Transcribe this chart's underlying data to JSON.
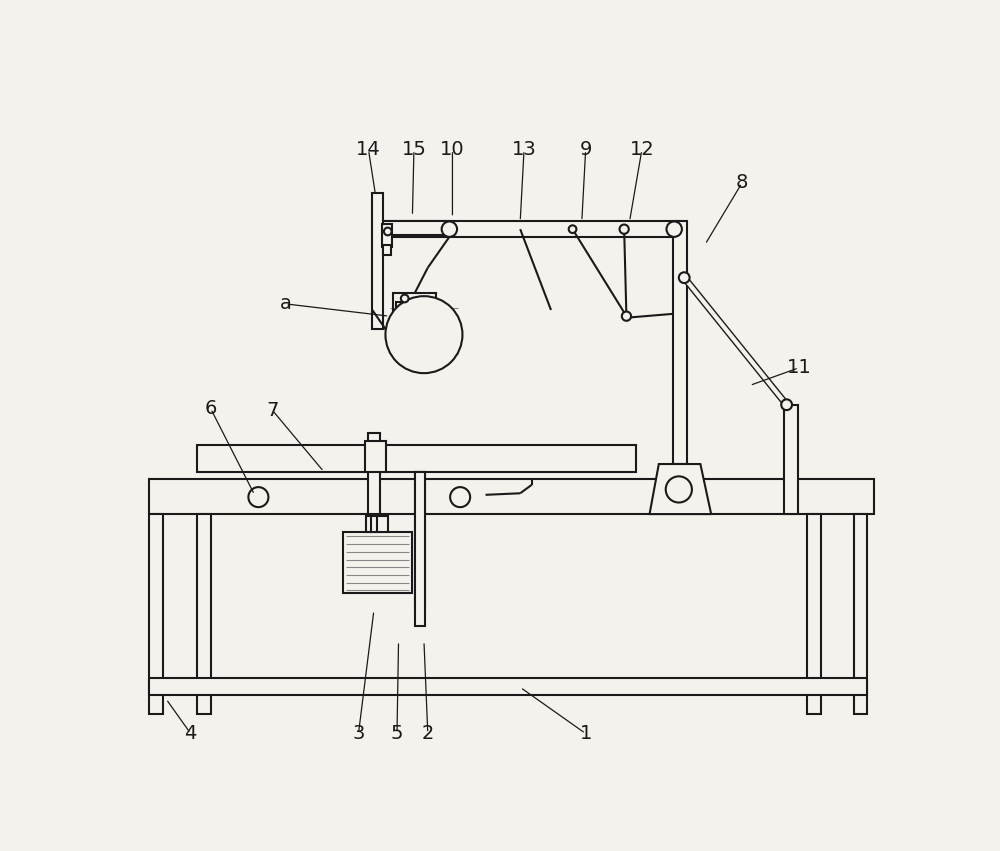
{
  "bg_color": "#f5f2ee",
  "line_color": "#1a1a1a",
  "lw": 1.5,
  "lw_thin": 0.8,
  "hatch_color": "#888888",
  "labels": [
    [
      "1",
      595,
      820,
      510,
      760
    ],
    [
      "2",
      390,
      820,
      385,
      700
    ],
    [
      "3",
      300,
      820,
      320,
      660
    ],
    [
      "4",
      82,
      820,
      50,
      775
    ],
    [
      "5",
      350,
      820,
      352,
      700
    ],
    [
      "6",
      108,
      398,
      165,
      510
    ],
    [
      "7",
      188,
      400,
      255,
      480
    ],
    [
      "8",
      798,
      105,
      750,
      185
    ],
    [
      "9",
      595,
      62,
      590,
      155
    ],
    [
      "10",
      422,
      62,
      422,
      150
    ],
    [
      "11",
      872,
      345,
      808,
      368
    ],
    [
      "12",
      668,
      62,
      652,
      155
    ],
    [
      "13",
      515,
      62,
      510,
      155
    ],
    [
      "14",
      313,
      62,
      322,
      120
    ],
    [
      "15",
      372,
      62,
      370,
      148
    ],
    [
      "a",
      205,
      262,
      340,
      278
    ]
  ]
}
